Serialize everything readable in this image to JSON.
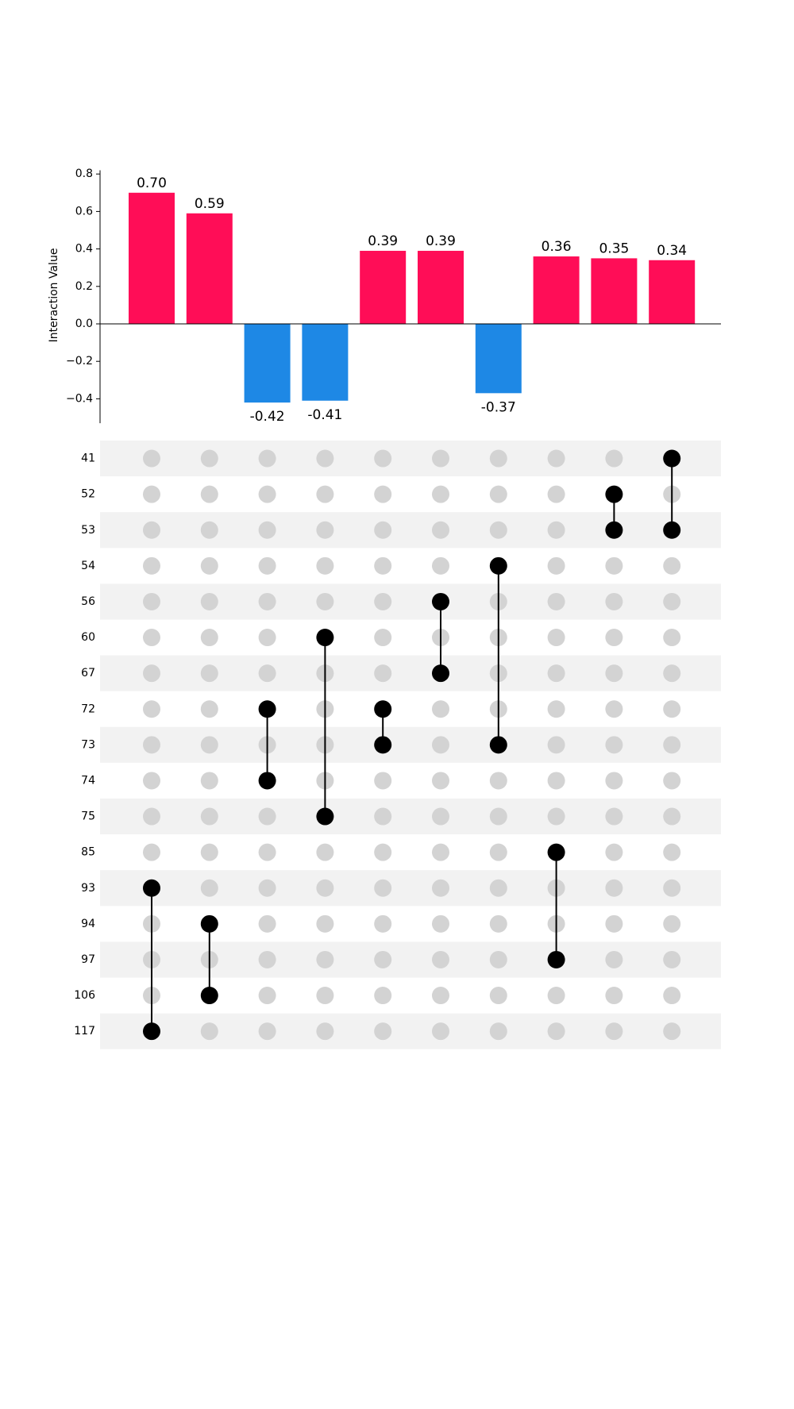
{
  "chart_data": {
    "type": "bar",
    "title": "",
    "xlabel": "",
    "ylabel": "Interaction Value",
    "ylim": [
      -0.53,
      0.82
    ],
    "yticks": [
      {
        "value": 0.8,
        "label": "0.8"
      },
      {
        "value": 0.6,
        "label": "0.6"
      },
      {
        "value": 0.4,
        "label": "0.4"
      },
      {
        "value": 0.2,
        "label": "0.2"
      },
      {
        "value": 0.0,
        "label": "0.0"
      },
      {
        "value": -0.2,
        "label": "−0.2"
      },
      {
        "value": -0.4,
        "label": "−0.4"
      }
    ],
    "values": [
      0.7,
      0.59,
      -0.42,
      -0.41,
      0.39,
      0.39,
      -0.37,
      0.36,
      0.35,
      0.34
    ],
    "value_labels": [
      "0.70",
      "0.59",
      "-0.42",
      "-0.41",
      "0.39",
      "0.39",
      "-0.37",
      "0.36",
      "0.35",
      "0.34"
    ],
    "colors": {
      "positive": "#ff0d57",
      "negative": "#1e88e5",
      "dot_active": "#000000",
      "dot_inactive": "#d3d3d3",
      "row_stripe": "#f2f2f2"
    },
    "features": [
      "41",
      "52",
      "53",
      "54",
      "56",
      "60",
      "67",
      "72",
      "73",
      "74",
      "75",
      "85",
      "93",
      "94",
      "97",
      "106",
      "117"
    ],
    "sets": [
      [
        "93",
        "117"
      ],
      [
        "94",
        "106"
      ],
      [
        "72",
        "74"
      ],
      [
        "60",
        "75"
      ],
      [
        "72",
        "73"
      ],
      [
        "56",
        "67"
      ],
      [
        "54",
        "73"
      ],
      [
        "85",
        "97"
      ],
      [
        "52",
        "53"
      ],
      [
        "41",
        "53"
      ]
    ]
  }
}
